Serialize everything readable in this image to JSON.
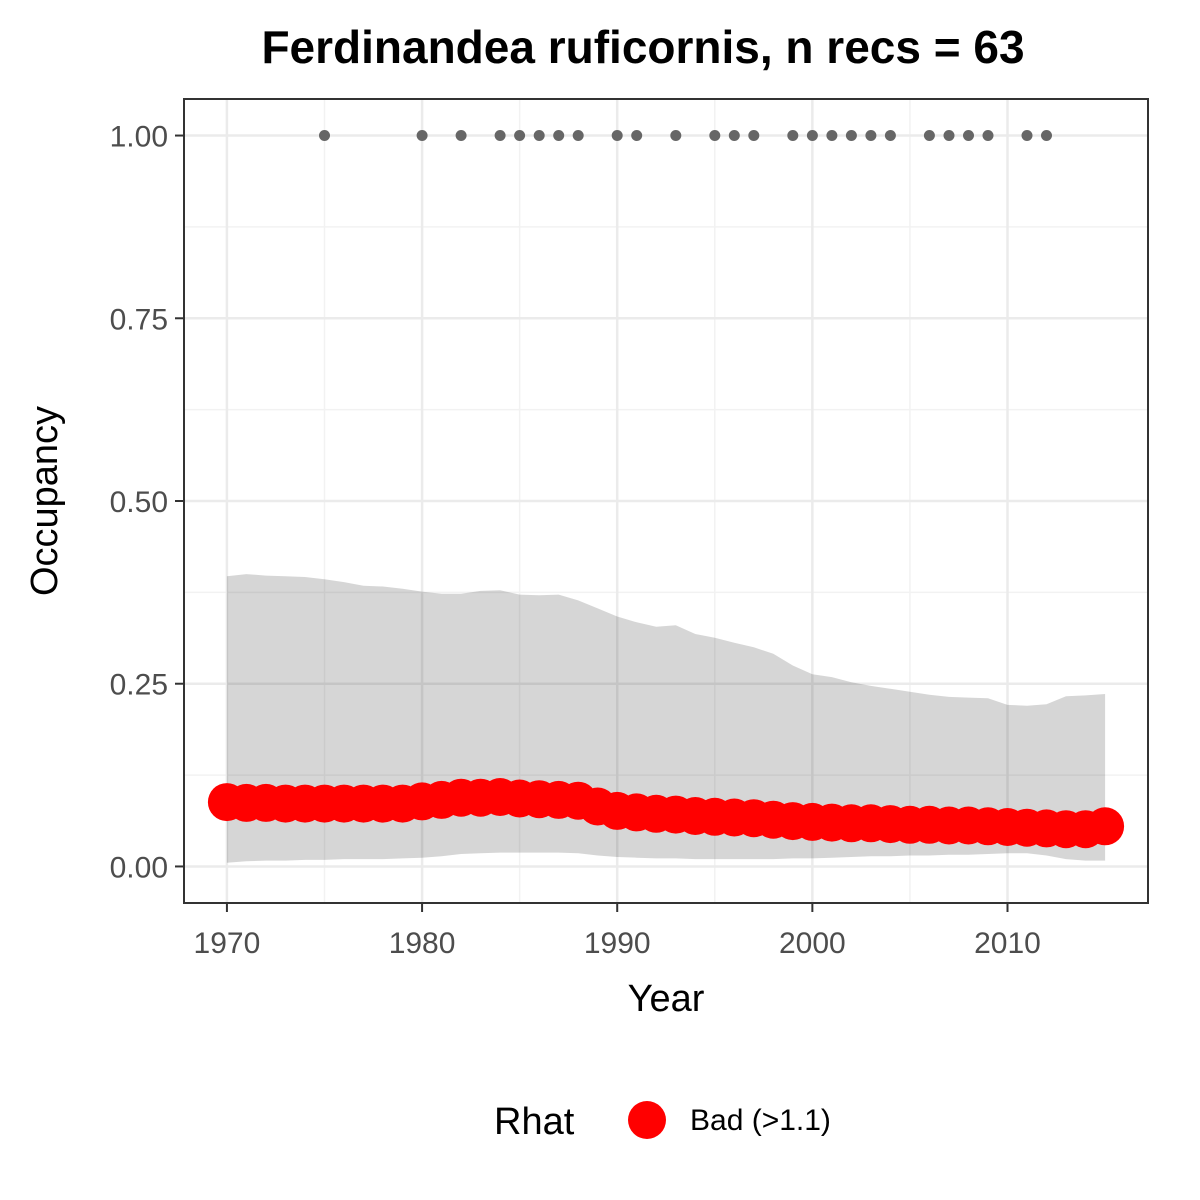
{
  "chart_data": {
    "type": "line",
    "title": "Ferdinandea ruficornis, n recs = 63",
    "xlabel": "Year",
    "ylabel": "Occupancy",
    "xlim": [
      1967.8,
      2017.2
    ],
    "ylim": [
      -0.05,
      1.05
    ],
    "x_ticks": [
      1970,
      1980,
      1990,
      2000,
      2010
    ],
    "x_tick_labels": [
      "1970",
      "1980",
      "1990",
      "2000",
      "2010"
    ],
    "y_ticks": [
      0,
      0.25,
      0.5,
      0.75,
      1.0
    ],
    "y_tick_labels": [
      "0.00",
      "0.25",
      "0.50",
      "0.75",
      "1.00"
    ],
    "grid": true,
    "legend_position": "bottom",
    "legend": {
      "title": "Rhat",
      "entries": [
        {
          "label": "Bad (>1.1)",
          "color": "#ff0000"
        }
      ]
    },
    "colors": {
      "points": "#ff0000",
      "ribbon": "#d6d6d6",
      "records": "#666666"
    },
    "series": [
      {
        "name": "Bad (>1.1)",
        "years": [
          1970,
          1971,
          1972,
          1973,
          1974,
          1975,
          1976,
          1977,
          1978,
          1979,
          1980,
          1981,
          1982,
          1983,
          1984,
          1985,
          1986,
          1987,
          1988,
          1989,
          1990,
          1991,
          1992,
          1993,
          1994,
          1995,
          1996,
          1997,
          1998,
          1999,
          2000,
          2001,
          2002,
          2003,
          2004,
          2005,
          2006,
          2007,
          2008,
          2009,
          2010,
          2011,
          2012,
          2013,
          2014,
          2015
        ],
        "mean": [
          0.088,
          0.087,
          0.087,
          0.086,
          0.086,
          0.086,
          0.086,
          0.086,
          0.086,
          0.086,
          0.089,
          0.091,
          0.094,
          0.094,
          0.095,
          0.093,
          0.092,
          0.091,
          0.09,
          0.082,
          0.076,
          0.074,
          0.072,
          0.071,
          0.069,
          0.068,
          0.067,
          0.066,
          0.064,
          0.062,
          0.061,
          0.06,
          0.059,
          0.059,
          0.058,
          0.057,
          0.057,
          0.056,
          0.056,
          0.055,
          0.054,
          0.053,
          0.052,
          0.051,
          0.051,
          0.055
        ],
        "upper": [
          0.397,
          0.4,
          0.398,
          0.397,
          0.396,
          0.393,
          0.389,
          0.384,
          0.383,
          0.38,
          0.376,
          0.373,
          0.373,
          0.377,
          0.378,
          0.372,
          0.371,
          0.372,
          0.364,
          0.353,
          0.342,
          0.334,
          0.328,
          0.33,
          0.318,
          0.313,
          0.306,
          0.3,
          0.291,
          0.275,
          0.263,
          0.259,
          0.252,
          0.247,
          0.243,
          0.239,
          0.235,
          0.232,
          0.231,
          0.23,
          0.221,
          0.22,
          0.222,
          0.233,
          0.234,
          0.236
        ],
        "lower": [
          0.005,
          0.007,
          0.008,
          0.008,
          0.009,
          0.009,
          0.01,
          0.01,
          0.01,
          0.011,
          0.012,
          0.014,
          0.017,
          0.018,
          0.019,
          0.019,
          0.019,
          0.019,
          0.018,
          0.015,
          0.013,
          0.012,
          0.011,
          0.011,
          0.01,
          0.01,
          0.01,
          0.01,
          0.01,
          0.011,
          0.011,
          0.012,
          0.013,
          0.014,
          0.014,
          0.015,
          0.015,
          0.016,
          0.016,
          0.017,
          0.018,
          0.018,
          0.015,
          0.01,
          0.008,
          0.008
        ]
      },
      {
        "name": "records",
        "years": [
          1975,
          1980,
          1982,
          1984,
          1985,
          1986,
          1987,
          1988,
          1990,
          1991,
          1993,
          1995,
          1996,
          1997,
          1999,
          2000,
          2001,
          2002,
          2003,
          2004,
          2006,
          2007,
          2008,
          2009,
          2011,
          2012
        ],
        "values": [
          1,
          1,
          1,
          1,
          1,
          1,
          1,
          1,
          1,
          1,
          1,
          1,
          1,
          1,
          1,
          1,
          1,
          1,
          1,
          1,
          1,
          1,
          1,
          1,
          1,
          1
        ]
      }
    ]
  }
}
